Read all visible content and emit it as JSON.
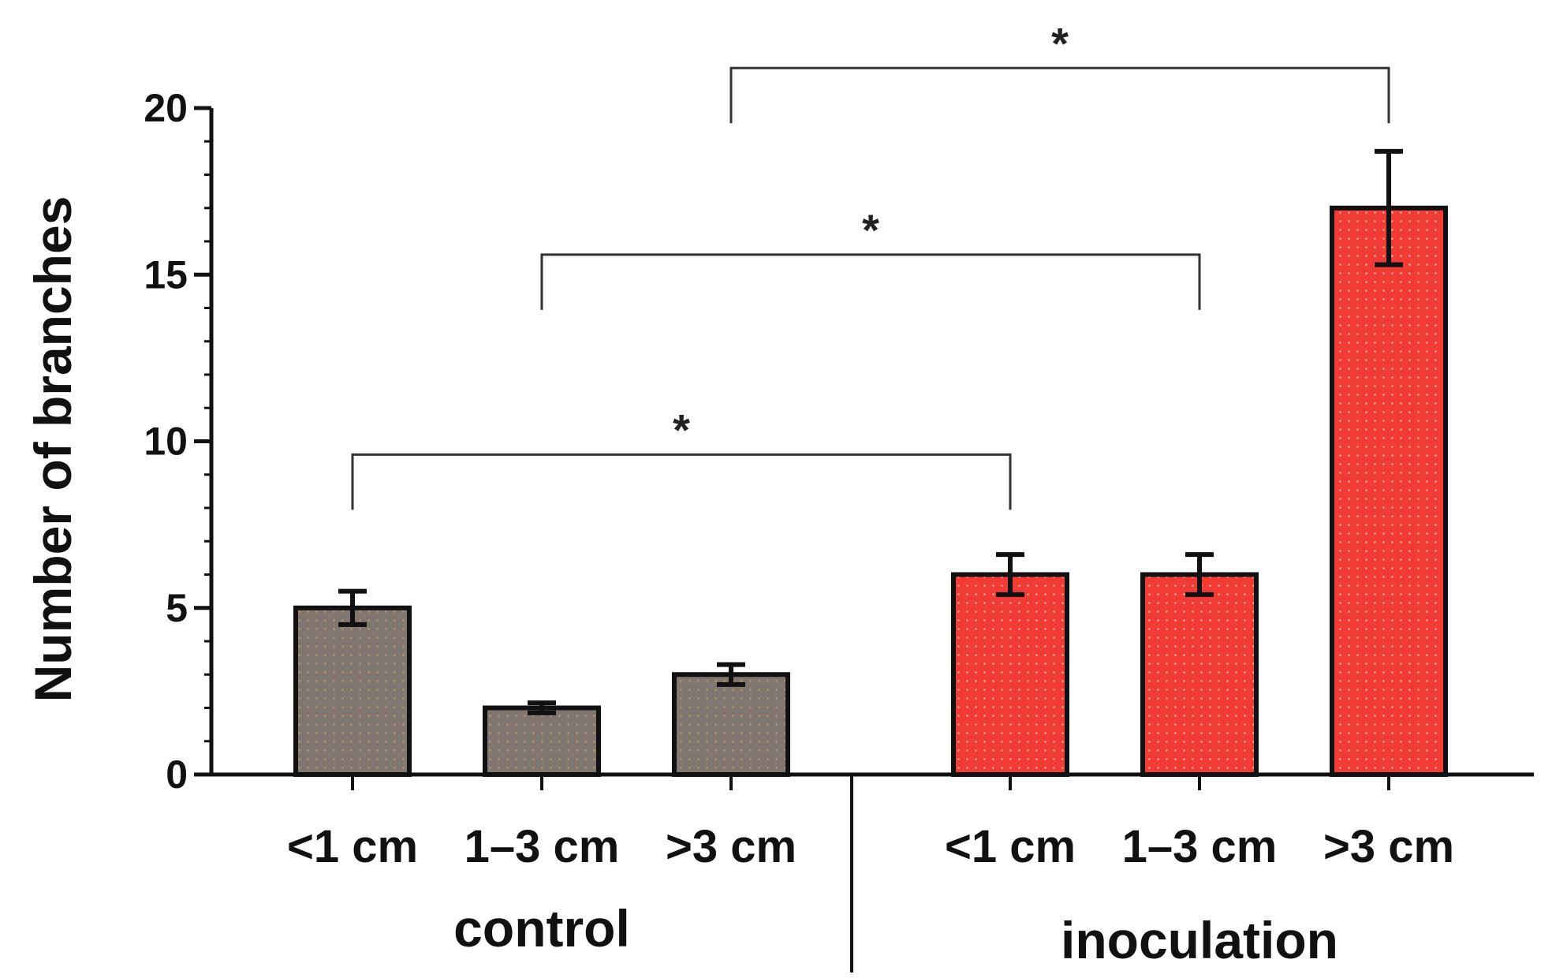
{
  "chart_data": {
    "type": "bar",
    "title": "",
    "xlabel": "",
    "ylabel": "Number of branches",
    "ylim": [
      0,
      20
    ],
    "y_ticks": [
      0,
      5,
      10,
      15,
      20
    ],
    "y_tick_labels": [
      "0",
      "5",
      "10",
      "15",
      "20"
    ],
    "grid": false,
    "categories": [
      "<1 cm",
      "1–3 cm",
      ">3 cm",
      "<1 cm",
      "1–3 cm",
      ">3 cm"
    ],
    "groups": [
      {
        "name": "control",
        "color": "#7f7770",
        "indices": [
          0,
          1,
          2
        ]
      },
      {
        "name": "inoculation",
        "color": "#f23b34",
        "indices": [
          3,
          4,
          5
        ]
      }
    ],
    "values": [
      5.0,
      2.0,
      3.0,
      6.0,
      6.0,
      17.0
    ],
    "errors": [
      0.5,
      0.15,
      0.3,
      0.6,
      0.6,
      1.7
    ],
    "bar_colors": [
      "#7f7770",
      "#7f7770",
      "#7f7770",
      "#f23b34",
      "#f23b34",
      "#f23b34"
    ],
    "significance": [
      {
        "from": 0,
        "to": 3,
        "label": "*",
        "level": 9.6
      },
      {
        "from": 1,
        "to": 4,
        "label": "*",
        "level": 15.6
      },
      {
        "from": 2,
        "to": 5,
        "label": "*",
        "level": 21.2
      }
    ]
  }
}
